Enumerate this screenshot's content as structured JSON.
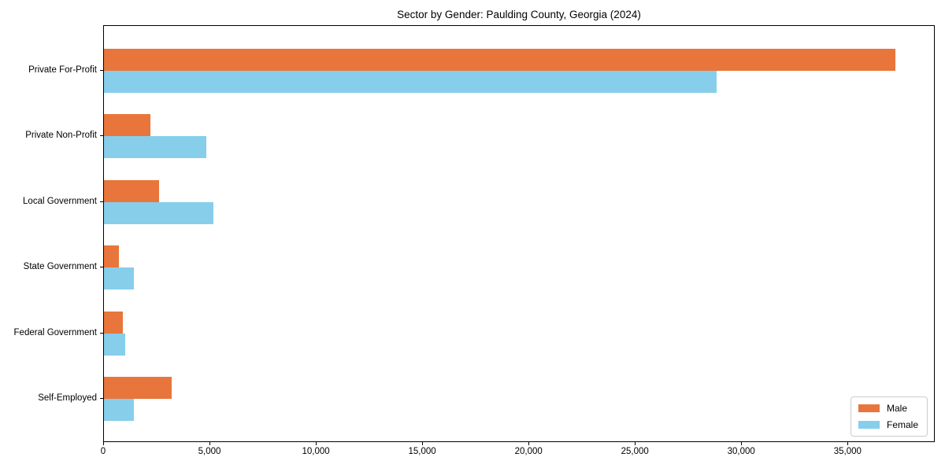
{
  "chart_data": {
    "type": "bar",
    "orientation": "horizontal",
    "title": "Sector by Gender: Paulding County, Georgia (2024)",
    "categories": [
      "Private For-Profit",
      "Private Non-Profit",
      "Local Government",
      "State Government",
      "Federal Government",
      "Self-Employed"
    ],
    "series": [
      {
        "name": "Male",
        "color": "#E8763C",
        "values": [
          37200,
          2200,
          2600,
          700,
          900,
          3200
        ]
      },
      {
        "name": "Female",
        "color": "#87CEEB",
        "values": [
          28800,
          4800,
          5150,
          1400,
          1000,
          1400
        ]
      }
    ],
    "xlabel": "",
    "ylabel": "",
    "xlim": [
      0,
      39100
    ],
    "x_ticks": [
      0,
      5000,
      10000,
      15000,
      20000,
      25000,
      30000,
      35000
    ],
    "x_tick_labels": [
      "0",
      "5,000",
      "10,000",
      "15,000",
      "20,000",
      "25,000",
      "30,000",
      "35,000"
    ],
    "legend": {
      "position": "lower right"
    },
    "grid": false,
    "colors": {
      "spine": "#000000",
      "legend_border": "#cccccc",
      "background": "#ffffff"
    }
  }
}
